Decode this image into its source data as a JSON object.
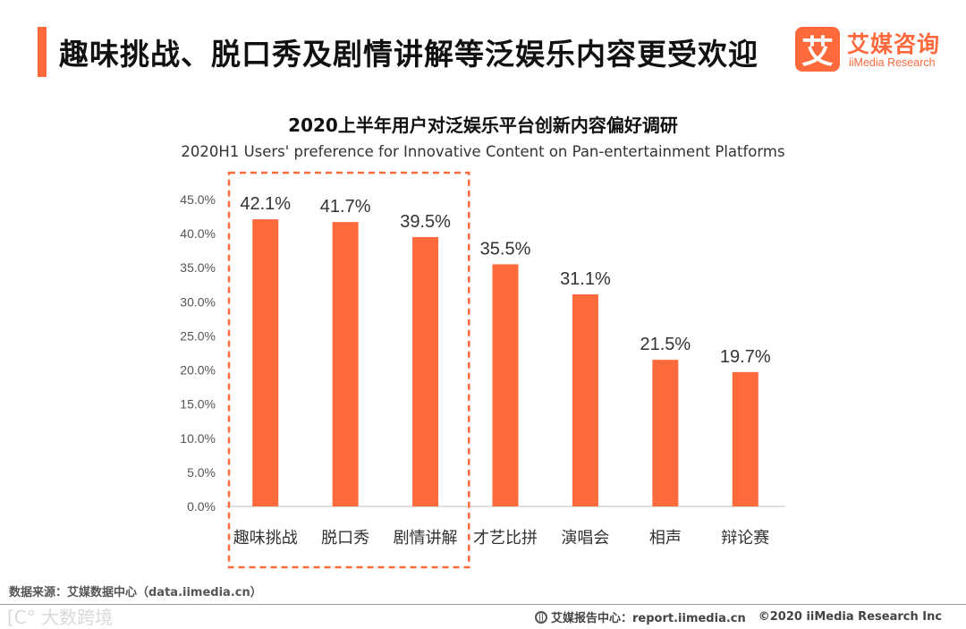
{
  "header": {
    "headline": "趣味挑战、脱口秀及剧情讲解等泛娱乐内容更受欢迎",
    "logo_mark": "艾",
    "logo_cn": "艾媒咨询",
    "logo_en": "iiMedia Research"
  },
  "colors": {
    "accent": "#ff6a3d",
    "bar": "#ff6a3d",
    "highlight_box": "#ff6a3d"
  },
  "chart_data": {
    "type": "bar",
    "title": "2020上半年用户对泛娱乐平台创新内容偏好调研",
    "subtitle": "2020H1 Users' preference for Innovative Content on Pan-entertainment Platforms",
    "categories": [
      "趣味挑战",
      "脱口秀",
      "剧情讲解",
      "才艺比拼",
      "演唱会",
      "相声",
      "辩论赛"
    ],
    "values": [
      42.1,
      41.7,
      39.5,
      35.5,
      31.1,
      21.5,
      19.7
    ],
    "value_labels": [
      "42.1%",
      "41.7%",
      "39.5%",
      "35.5%",
      "31.1%",
      "21.5%",
      "19.7%"
    ],
    "y_ticks": [
      "0.0%",
      "5.0%",
      "10.0%",
      "15.0%",
      "20.0%",
      "25.0%",
      "30.0%",
      "35.0%",
      "40.0%",
      "45.0%"
    ],
    "ylim": [
      0,
      45
    ],
    "grid": false,
    "highlighted_categories": [
      "趣味挑战",
      "脱口秀",
      "剧情讲解"
    ]
  },
  "footer": {
    "source": "数据来源：艾媒数据中心（data.iimedia.cn）",
    "watermark": "[C° 大数跨境",
    "report": "艾媒报告中心：report.iimedia.cn",
    "copyright": "©2020  iiMedia Research  Inc"
  }
}
